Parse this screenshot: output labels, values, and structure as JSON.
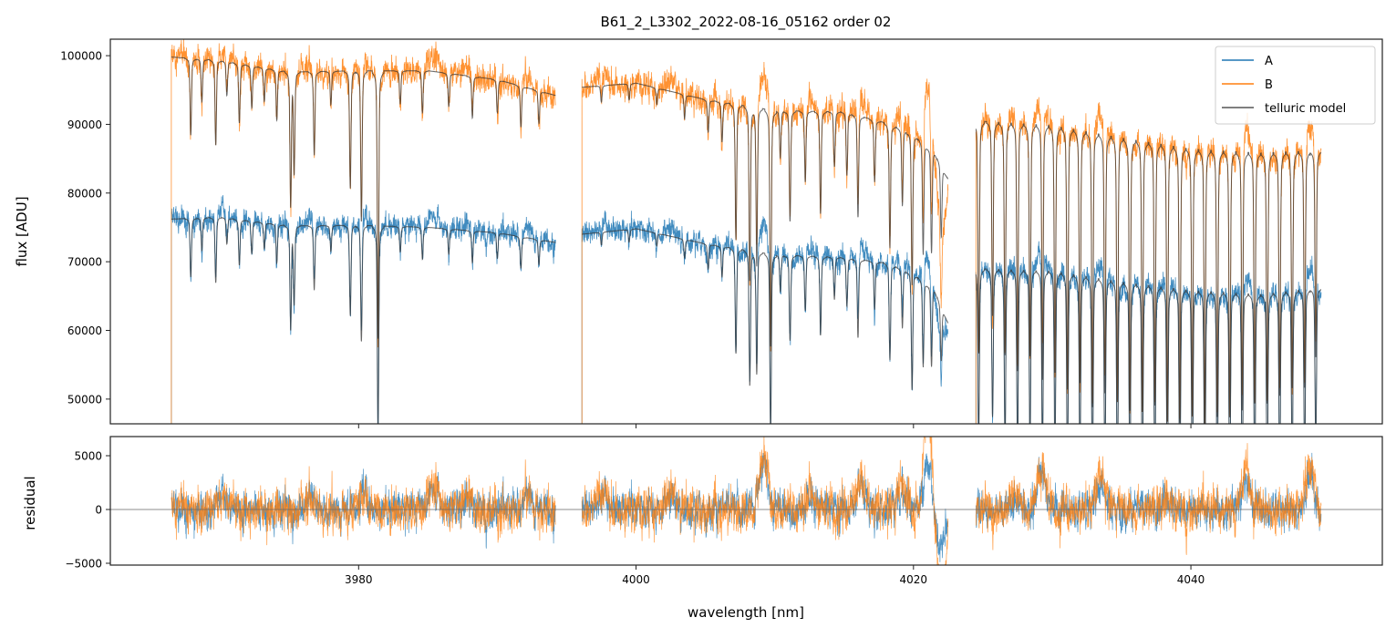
{
  "chart_data": [
    {
      "type": "line",
      "title": "B61_2_L3302_2022-08-16_05162  order 02",
      "xlabel": "",
      "ylabel": "flux [ADU]",
      "xlim": [
        3962.1,
        4053.8
      ],
      "ylim": [
        46400,
        102400
      ],
      "xticks": [
        3980,
        4000,
        4020,
        4040
      ],
      "xtick_labels": [
        "3980",
        "4000",
        "4020",
        "4040"
      ],
      "yticks": [
        50000,
        60000,
        70000,
        80000,
        90000,
        100000
      ],
      "ytick_labels": [
        "50000",
        "60000",
        "70000",
        "80000",
        "90000",
        "100000"
      ],
      "legend": {
        "placement": "top-right",
        "entries": [
          "A",
          "B",
          "telluric model"
        ]
      },
      "segments": [
        [
          3966.5,
          3994.2
        ],
        [
          3996.1,
          4022.5
        ],
        [
          4024.5,
          4049.4
        ]
      ],
      "series": [
        {
          "name": "A",
          "color": "#1f77b4",
          "continuum": [
            [
              3966.5,
              76200
            ],
            [
              3970,
              76500
            ],
            [
              3975,
              75200
            ],
            [
              3980,
              75300
            ],
            [
              3985,
              75000
            ],
            [
              3990,
              74200
            ],
            [
              3994.2,
              72800
            ],
            [
              3996.1,
              74000
            ],
            [
              4000,
              74800
            ],
            [
              4005,
              72600
            ],
            [
              4010,
              71000
            ],
            [
              4015,
              70600
            ],
            [
              4018,
              69800
            ],
            [
              4020,
              68300
            ],
            [
              4021.5,
              66000
            ],
            [
              4022.5,
              61000
            ],
            [
              4024.5,
              69000
            ],
            [
              4030,
              68600
            ],
            [
              4035,
              67000
            ],
            [
              4040,
              65800
            ],
            [
              4045,
              65200
            ],
            [
              4049.4,
              66200
            ]
          ],
          "noise": 1200
        },
        {
          "name": "B",
          "color": "#ff7f0e",
          "continuum": [
            [
              3966.5,
              99800
            ],
            [
              3970,
              99300
            ],
            [
              3975,
              97600
            ],
            [
              3980,
              97800
            ],
            [
              3985,
              97800
            ],
            [
              3990,
              96500
            ],
            [
              3994.2,
              94200
            ],
            [
              3996.1,
              95400
            ],
            [
              4000,
              96000
            ],
            [
              4005,
              93600
            ],
            [
              4010,
              92000
            ],
            [
              4015,
              91800
            ],
            [
              4018,
              90200
            ],
            [
              4020,
              88600
            ],
            [
              4021.5,
              86000
            ],
            [
              4022.5,
              82000
            ],
            [
              4024.5,
              90500
            ],
            [
              4030,
              89800
            ],
            [
              4035,
              88000
            ],
            [
              4040,
              86400
            ],
            [
              4045,
              85800
            ],
            [
              4049.4,
              86200
            ]
          ],
          "noise": 1400
        },
        {
          "name": "telluric model",
          "color": "#555555"
        }
      ],
      "telluric_lines": [
        [
          3967.9,
          0.09
        ],
        [
          3968.7,
          0.05
        ],
        [
          3969.7,
          0.1
        ],
        [
          3970.5,
          0.04
        ],
        [
          3971.4,
          0.07
        ],
        [
          3972.3,
          0.05
        ],
        [
          3973.2,
          0.04
        ],
        [
          3974.1,
          0.06
        ],
        [
          3975.1,
          0.16
        ],
        [
          3975.35,
          0.12
        ],
        [
          3976.8,
          0.1
        ],
        [
          3978.0,
          0.04
        ],
        [
          3979.4,
          0.14
        ],
        [
          3980.2,
          0.18
        ],
        [
          3981.4,
          0.32
        ],
        [
          3983.0,
          0.04
        ],
        [
          3984.6,
          0.05
        ],
        [
          3986.5,
          0.04
        ],
        [
          3988.2,
          0.05
        ],
        [
          3990.0,
          0.04
        ],
        [
          3991.7,
          0.05
        ],
        [
          3993.0,
          0.04
        ],
        [
          3997.5,
          0.02
        ],
        [
          3999.5,
          0.02
        ],
        [
          4001.5,
          0.02
        ],
        [
          4003.5,
          0.03
        ],
        [
          4005.2,
          0.04
        ],
        [
          4006.2,
          0.05
        ],
        [
          4007.2,
          0.17
        ],
        [
          4008.2,
          0.22
        ],
        [
          4008.7,
          0.2
        ],
        [
          4009.7,
          0.3
        ],
        [
          4010.4,
          0.06
        ],
        [
          4011.1,
          0.14
        ],
        [
          4012.2,
          0.09
        ],
        [
          4013.3,
          0.13
        ],
        [
          4014.3,
          0.07
        ],
        [
          4015.2,
          0.08
        ],
        [
          4016.0,
          0.13
        ],
        [
          4017.2,
          0.08
        ],
        [
          4018.3,
          0.16
        ],
        [
          4019.2,
          0.1
        ],
        [
          4019.9,
          0.2
        ],
        [
          4020.7,
          0.15
        ],
        [
          4021.3,
          0.14
        ],
        [
          4022.0,
          0.1
        ],
        [
          4024.7,
          0.3
        ],
        [
          4025.7,
          0.25
        ],
        [
          4026.6,
          0.3
        ],
        [
          4027.5,
          0.32
        ],
        [
          4028.4,
          0.3
        ],
        [
          4029.3,
          0.33
        ],
        [
          4030.2,
          0.32
        ],
        [
          4031.1,
          0.34
        ],
        [
          4032.0,
          0.33
        ],
        [
          4032.9,
          0.36
        ],
        [
          4033.8,
          0.34
        ],
        [
          4034.7,
          0.35
        ],
        [
          4035.6,
          0.36
        ],
        [
          4036.5,
          0.36
        ],
        [
          4037.4,
          0.35
        ],
        [
          4038.3,
          0.37
        ],
        [
          4039.2,
          0.37
        ],
        [
          4040.1,
          0.36
        ],
        [
          4041.0,
          0.37
        ],
        [
          4041.9,
          0.36
        ],
        [
          4042.8,
          0.36
        ],
        [
          4043.7,
          0.35
        ],
        [
          4044.6,
          0.34
        ],
        [
          4045.5,
          0.34
        ],
        [
          4046.4,
          0.33
        ],
        [
          4047.3,
          0.32
        ],
        [
          4048.2,
          0.32
        ],
        [
          4049.0,
          0.28
        ]
      ]
    },
    {
      "type": "line",
      "xlabel": "wavelength [nm]",
      "ylabel": "residual",
      "xlim": [
        3962.1,
        4053.8
      ],
      "ylim": [
        -5170,
        6780
      ],
      "xticks": [
        3980,
        4000,
        4020,
        4040
      ],
      "xtick_labels": [
        "3980",
        "4000",
        "4020",
        "4040"
      ],
      "yticks": [
        -5000,
        0,
        5000
      ],
      "ytick_labels": [
        "−5000",
        "0",
        "5000"
      ],
      "hline": 0,
      "series": [
        {
          "name": "A residual",
          "color": "#1f77b4"
        },
        {
          "name": "B residual",
          "color": "#ff7f0e"
        }
      ],
      "residual_bumps": [
        [
          3970.3,
          1500
        ],
        [
          3976.5,
          1300
        ],
        [
          3980.3,
          2200
        ],
        [
          3985.4,
          2800
        ],
        [
          3987.8,
          1500
        ],
        [
          3992.2,
          1800
        ],
        [
          3997.6,
          2200
        ],
        [
          4002.5,
          1500
        ],
        [
          4009.2,
          5500
        ],
        [
          4012.5,
          1800
        ],
        [
          4016.2,
          3000
        ],
        [
          4019.2,
          2800
        ],
        [
          4027.4,
          1500
        ],
        [
          4029.2,
          4200
        ],
        [
          4033.5,
          3300
        ],
        [
          4038.2,
          1200
        ],
        [
          4044.0,
          3800
        ],
        [
          4048.6,
          4000
        ]
      ]
    }
  ]
}
